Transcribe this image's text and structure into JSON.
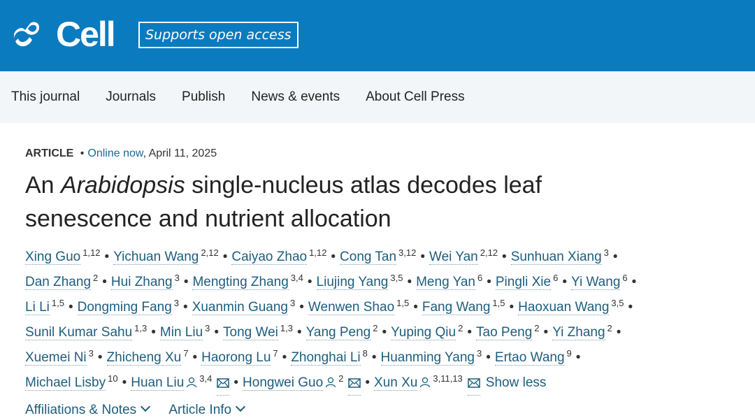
{
  "header": {
    "logo": "Cell",
    "badge": "Supports open access",
    "brand_color": "#0b7bbf"
  },
  "nav": [
    "This journal",
    "Journals",
    "Publish",
    "News & events",
    "About Cell Press"
  ],
  "meta": {
    "type": "ARTICLE",
    "separator": "•",
    "status": "Online now",
    "date": ", April 11, 2025"
  },
  "title": {
    "pre": "An ",
    "italic": "Arabidopsis",
    "post": " single-nucleus atlas decodes leaf",
    "line2": "senescence and nutrient allocation"
  },
  "authors": [
    [
      {
        "n": "Xing Guo",
        "s": "1,12"
      },
      {
        "n": "Yichuan Wang",
        "s": "2,12"
      },
      {
        "n": "Caiyao Zhao",
        "s": "1,12"
      },
      {
        "n": "Cong Tan",
        "s": "3,12"
      },
      {
        "n": "Wei Yan",
        "s": "2,12"
      },
      {
        "n": "Sunhuan Xiang",
        "s": "3"
      }
    ],
    [
      {
        "n": "Dan Zhang",
        "s": "2"
      },
      {
        "n": "Hui Zhang",
        "s": "3"
      },
      {
        "n": "Mengting Zhang",
        "s": "3,4"
      },
      {
        "n": "Liujing Yang",
        "s": "3,5"
      },
      {
        "n": "Meng Yan",
        "s": "6"
      },
      {
        "n": "Pingli Xie",
        "s": "6"
      },
      {
        "n": "Yi Wang",
        "s": "6"
      }
    ],
    [
      {
        "n": "Li Li",
        "s": "1,5"
      },
      {
        "n": "Dongming Fang",
        "s": "3"
      },
      {
        "n": "Xuanmin Guang",
        "s": "3"
      },
      {
        "n": "Wenwen Shao",
        "s": "1,5"
      },
      {
        "n": "Fang Wang",
        "s": "1,5"
      },
      {
        "n": "Haoxuan Wang",
        "s": "3,5"
      }
    ],
    [
      {
        "n": "Sunil Kumar Sahu",
        "s": "1,3"
      },
      {
        "n": "Min Liu",
        "s": "3"
      },
      {
        "n": "Tong Wei",
        "s": "1,3"
      },
      {
        "n": "Yang Peng",
        "s": "2"
      },
      {
        "n": "Yuping Qiu",
        "s": "2"
      },
      {
        "n": "Tao Peng",
        "s": "2"
      },
      {
        "n": "Yi Zhang",
        "s": "2"
      }
    ],
    [
      {
        "n": "Xuemei Ni",
        "s": "3"
      },
      {
        "n": "Zhicheng Xu",
        "s": "7"
      },
      {
        "n": "Haorong Lu",
        "s": "7"
      },
      {
        "n": "Zhonghai Li",
        "s": "8"
      },
      {
        "n": "Huanming Yang",
        "s": "3"
      },
      {
        "n": "Ertao Wang",
        "s": "9"
      }
    ],
    [
      {
        "n": "Michael Lisby",
        "s": "10"
      },
      {
        "n": "Huan Liu",
        "s": "3,4",
        "c": true
      },
      {
        "n": "Hongwei Guo",
        "s": "2",
        "c": true
      },
      {
        "n": "Xun Xu",
        "s": "3,11,13",
        "c": true
      }
    ]
  ],
  "show_less": "Show less",
  "links": [
    "Affiliations & Notes",
    "Article Info"
  ]
}
